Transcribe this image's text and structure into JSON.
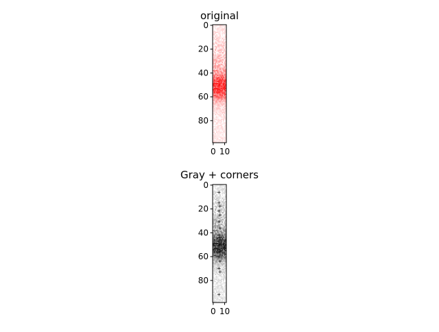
{
  "chart_data": [
    {
      "type": "heatmap",
      "title": "original",
      "colormap": "red",
      "image_rows": 99,
      "image_cols": 12,
      "x_ticks": [
        0,
        10
      ],
      "y_ticks": [
        0,
        20,
        40,
        60,
        80
      ],
      "xlim": [
        -0.5,
        11.5
      ],
      "ylim": [
        98.5,
        -0.5
      ],
      "grid": false
    },
    {
      "type": "heatmap",
      "title": "Gray + corners",
      "colormap": "gray",
      "image_rows": 99,
      "image_cols": 12,
      "x_ticks": [
        0,
        10
      ],
      "y_ticks": [
        0,
        20,
        40,
        60,
        80
      ],
      "xlim": [
        -0.5,
        11.5
      ],
      "ylim": [
        98.5,
        -0.5
      ],
      "grid": false,
      "corner_marker_color": "#0000ff",
      "corners": [
        [
          5,
          6
        ],
        [
          5,
          15
        ],
        [
          6,
          18
        ],
        [
          5,
          22
        ],
        [
          6,
          25
        ],
        [
          5,
          31
        ],
        [
          6,
          36
        ],
        [
          5,
          42
        ],
        [
          6,
          44
        ],
        [
          7,
          50
        ],
        [
          6,
          56
        ],
        [
          5,
          60
        ],
        [
          6,
          64
        ],
        [
          5,
          70
        ],
        [
          6,
          73
        ],
        [
          5,
          92
        ]
      ]
    }
  ],
  "colors": {
    "red": "#ff0000",
    "black": "#000000",
    "blue": "#0000ff"
  }
}
